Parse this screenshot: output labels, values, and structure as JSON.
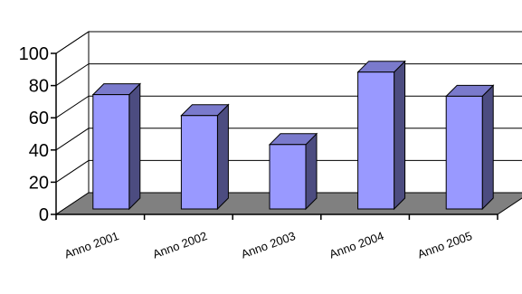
{
  "chart_data": {
    "type": "bar",
    "title": "",
    "xlabel": "",
    "ylabel": "",
    "categories": [
      "Anno 2001",
      "Anno 2002",
      "Anno 2003",
      "Anno 2004",
      "Anno 2005"
    ],
    "series": [
      {
        "values": [
          71,
          58,
          40,
          85,
          70
        ]
      }
    ],
    "ylim": [
      0,
      100
    ],
    "yticks": [
      "0",
      "20",
      "40",
      "60",
      "80",
      "100"
    ],
    "grid": true,
    "three_d": true,
    "legend": "none",
    "colors": {
      "bar_front": "#9999ff",
      "bar_side": "#4c4c80",
      "bar_top": "#7a7acc",
      "floor": "#808080",
      "wall": "#ffffff",
      "axis": "#000000"
    }
  }
}
